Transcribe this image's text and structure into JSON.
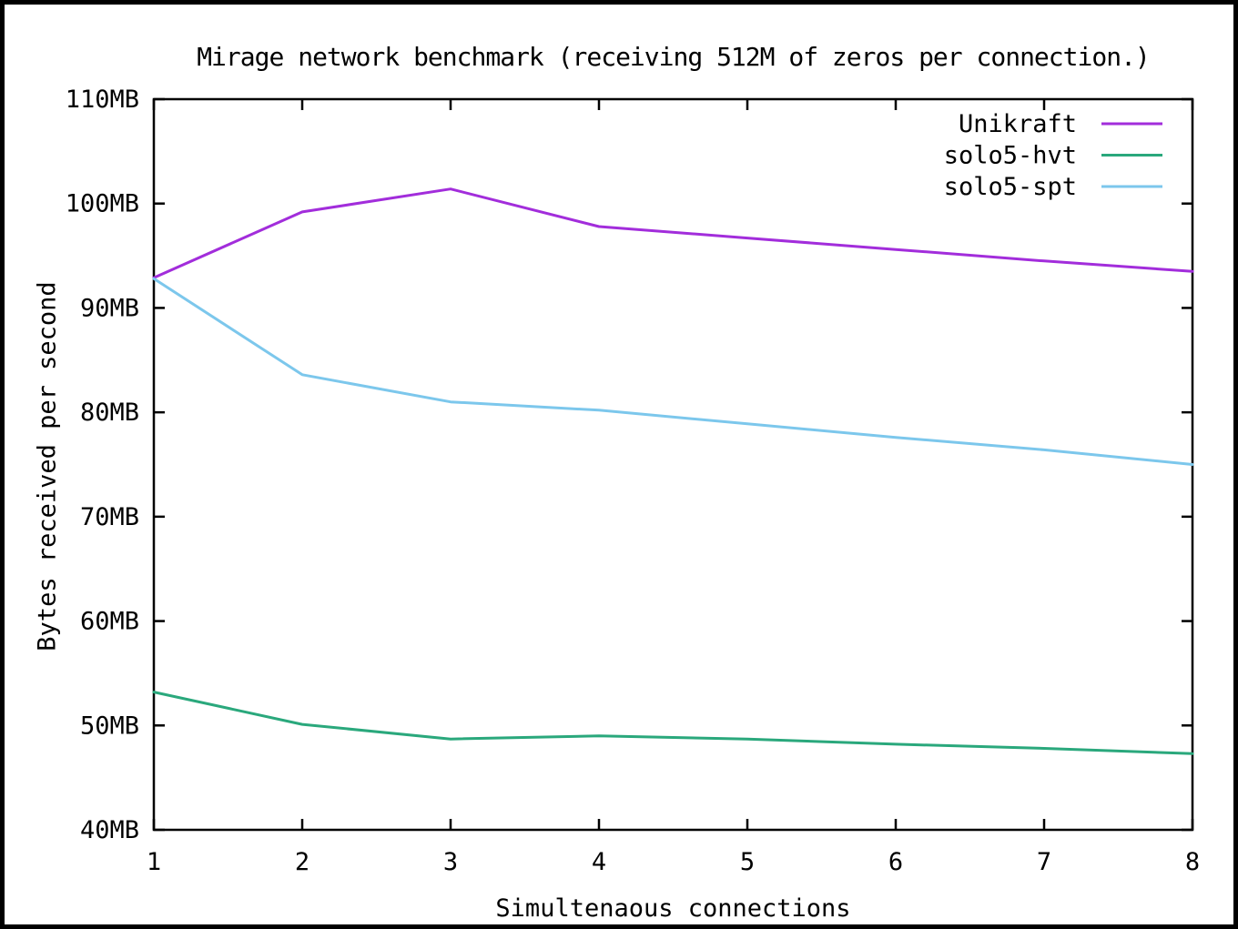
{
  "chart_data": {
    "type": "line",
    "title": "Mirage network benchmark (receiving 512M of zeros per connection.)",
    "xlabel": "Simultenaous connections",
    "ylabel": "Bytes received per second",
    "x": [
      1,
      2,
      3,
      4,
      5,
      6,
      7,
      8
    ],
    "xlim": [
      1,
      8
    ],
    "ylim": [
      40,
      110
    ],
    "ytick_step": 10,
    "xtick_labels": [
      "1",
      "2",
      "3",
      "4",
      "5",
      "6",
      "7",
      "8"
    ],
    "ytick_labels": [
      "40MB",
      "50MB",
      "60MB",
      "70MB",
      "80MB",
      "90MB",
      "100MB",
      "110MB"
    ],
    "grid": false,
    "legend_position": "top-right-inside",
    "axis_color": "#000000",
    "background_color": "#ffffff",
    "series": [
      {
        "name": "Unikraft",
        "color": "#a22ddb",
        "values": [
          92.9,
          99.2,
          101.4,
          97.8,
          96.7,
          95.6,
          94.5,
          93.5
        ]
      },
      {
        "name": "solo5-hvt",
        "color": "#2aa87c",
        "values": [
          53.2,
          50.1,
          48.7,
          49.0,
          48.7,
          48.2,
          47.8,
          47.3
        ]
      },
      {
        "name": "solo5-spt",
        "color": "#7cc7ec",
        "values": [
          92.8,
          83.6,
          81.0,
          80.2,
          78.9,
          77.6,
          76.4,
          75.0
        ]
      }
    ]
  }
}
